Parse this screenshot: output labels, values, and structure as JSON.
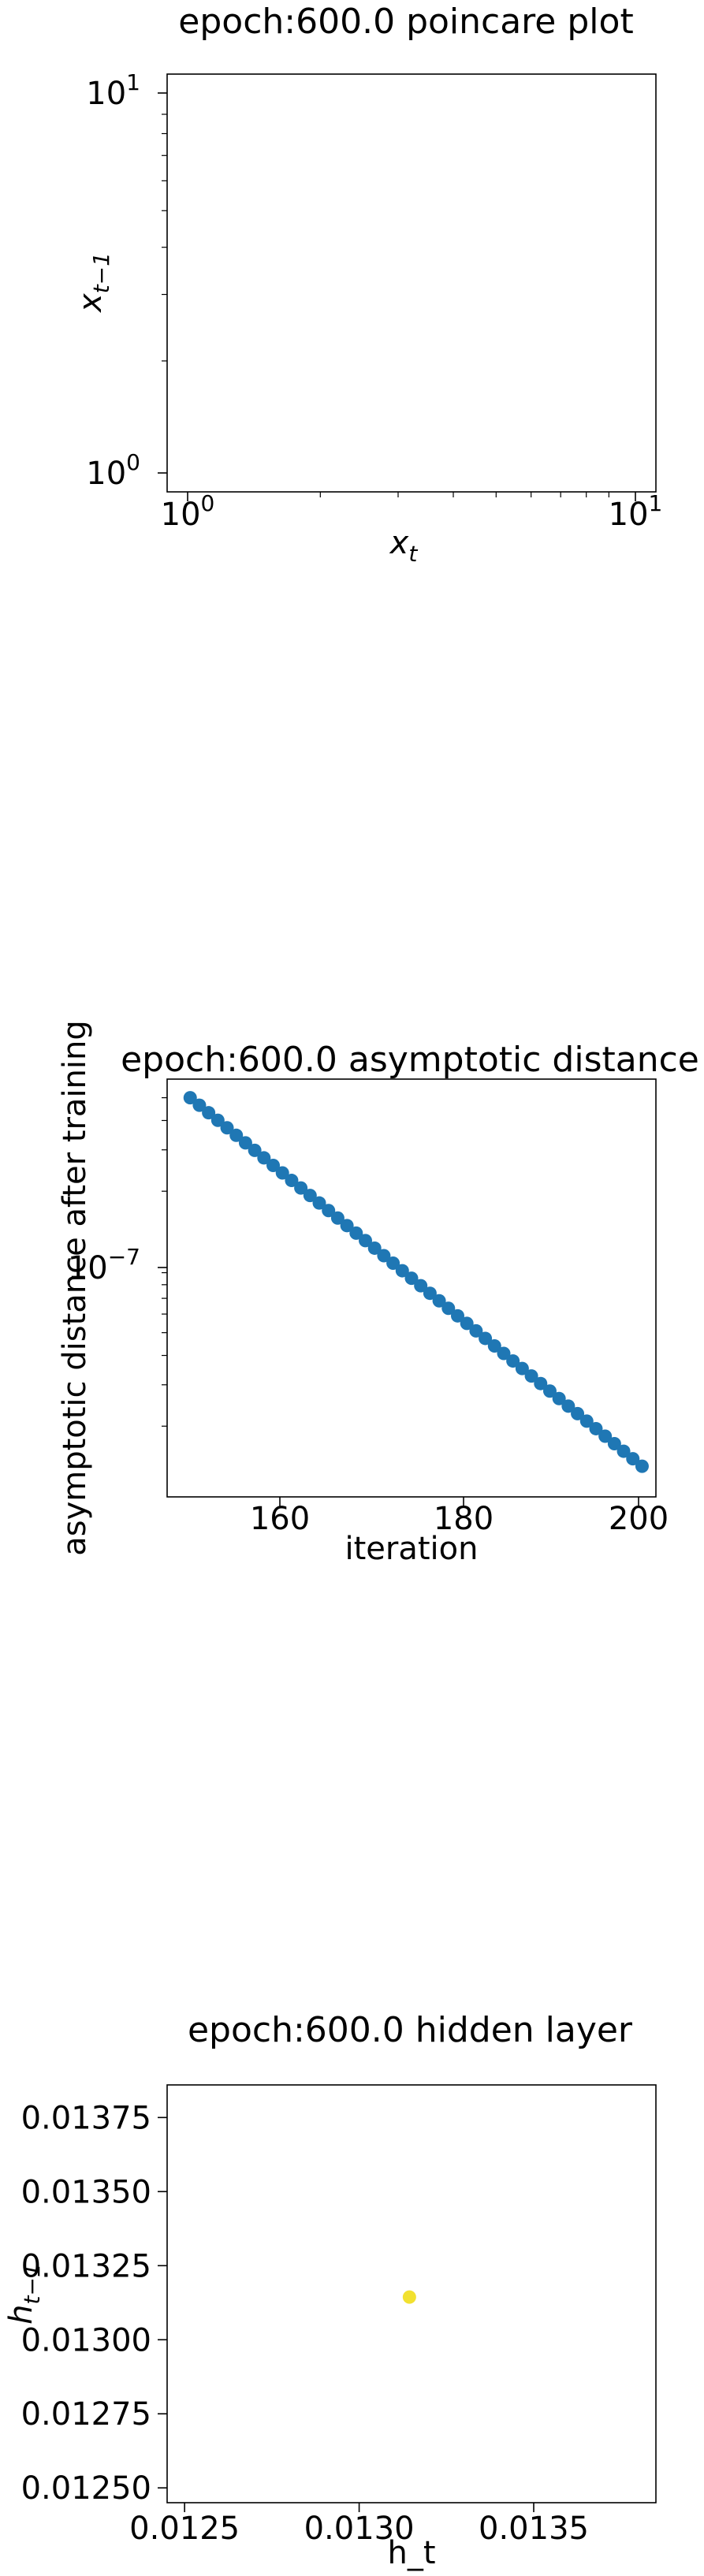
{
  "chart_data": [
    {
      "type": "scatter",
      "title": "epoch:600.0 poincare plot",
      "xlabel": "x",
      "xlabel_sub": "t",
      "ylabel": "x",
      "ylabel_sub": "t−1",
      "xscale": "log",
      "yscale": "log",
      "xlim": [
        0.9,
        11.5
      ],
      "ylim": [
        0.9,
        11.5
      ],
      "x_ticks": [
        {
          "base": "10",
          "exp": "0",
          "value": 1
        },
        {
          "base": "10",
          "exp": "1",
          "value": 10
        }
      ],
      "y_ticks": [
        {
          "base": "10",
          "exp": "0",
          "value": 1
        },
        {
          "base": "10",
          "exp": "1",
          "value": 10
        }
      ],
      "series": [
        {
          "x": [],
          "y": []
        }
      ],
      "grid": false
    },
    {
      "type": "scatter",
      "title": "epoch:600.0 asymptotic distance",
      "xlabel": "iteration",
      "ylabel": "asymptotic distance after training",
      "yscale": "log",
      "xlim": [
        147.5,
        200.5
      ],
      "ylim": [
        1e-08,
        6e-07
      ],
      "x_ticks": [
        "160",
        "180",
        "200"
      ],
      "y_ticks": [
        {
          "base": "10",
          "exp": "−7",
          "value": 1e-07
        }
      ],
      "color": "#1f77b4",
      "series": [
        {
          "x": [
            150,
            151,
            152,
            153,
            154,
            155,
            156,
            157,
            158,
            159,
            160,
            161,
            162,
            163,
            164,
            165,
            166,
            167,
            168,
            169,
            170,
            171,
            172,
            173,
            174,
            175,
            176,
            177,
            178,
            179,
            180,
            181,
            182,
            183,
            184,
            185,
            186,
            187,
            188,
            189,
            190,
            191,
            192,
            193,
            194,
            195,
            196,
            197,
            198,
            199
          ],
          "y_start": 5e-07,
          "y_end": 1.35e-08
        }
      ],
      "grid": false
    },
    {
      "type": "scatter",
      "title": "epoch:600.0 hidden layer",
      "xlabel": "h_t",
      "ylabel": "h",
      "ylabel_sub": "t−1",
      "xlim": [
        0.01245,
        0.01385
      ],
      "ylim": [
        0.01245,
        0.01386
      ],
      "x_ticks": [
        "0.0125",
        "0.0130",
        "0.0135"
      ],
      "y_ticks": [
        "0.01250",
        "0.01275",
        "0.01300",
        "0.01325",
        "0.01350",
        "0.01375"
      ],
      "color": "#f2e130",
      "series": [
        {
          "x": [
            0.013144
          ],
          "y": [
            0.013144
          ]
        }
      ],
      "grid": false
    }
  ]
}
